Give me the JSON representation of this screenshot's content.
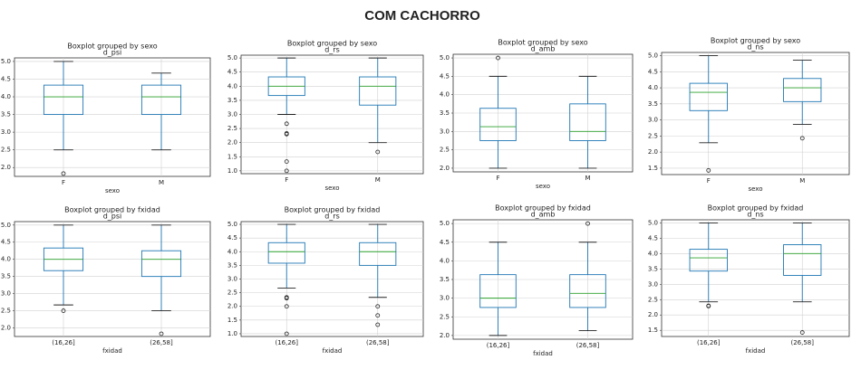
{
  "page_title": "COM CACHORRO",
  "chart_data": [
    {
      "type": "box",
      "title": "Boxplot grouped by sexo",
      "subtitle": "d_psi",
      "xlabel": "sexo",
      "categories": [
        "F",
        "M"
      ],
      "boxes": [
        {
          "whislo": 2.5,
          "q1": 3.5,
          "med": 4.0,
          "q3": 4.33,
          "whishi": 5.0,
          "fliers": [
            1.83
          ]
        },
        {
          "whislo": 2.5,
          "q1": 3.5,
          "med": 4.0,
          "q3": 4.33,
          "whishi": 4.67,
          "fliers": []
        }
      ],
      "ylim": [
        1.75,
        5.1
      ],
      "yticks": [
        {
          "value": 2,
          "label": "2.0"
        },
        2.5,
        {
          "value": 3,
          "label": "3.0"
        },
        3.5,
        {
          "value": 4,
          "label": "4.0"
        },
        4.5,
        {
          "value": 5,
          "label": "5.0"
        }
      ],
      "grid": true,
      "color": "#1f77b4",
      "median_color": "#2ca02c"
    },
    {
      "type": "box",
      "title": "Boxplot grouped by sexo",
      "subtitle": "d_rs",
      "xlabel": "sexo",
      "categories": [
        "F",
        "M"
      ],
      "boxes": [
        {
          "whislo": 3.0,
          "q1": 3.67,
          "med": 4.0,
          "q3": 4.33,
          "whishi": 5.0,
          "fliers": [
            2.67,
            2.33,
            2.3,
            1.33,
            1.0
          ]
        },
        {
          "whislo": 2.0,
          "q1": 3.33,
          "med": 4.0,
          "q3": 4.33,
          "whishi": 5.0,
          "fliers": [
            1.67
          ]
        }
      ],
      "ylim": [
        0.9,
        5.1
      ],
      "yticks": [
        {
          "value": 1,
          "label": "1.0"
        },
        1.5,
        {
          "value": 2,
          "label": "2.0"
        },
        2.5,
        {
          "value": 3,
          "label": "3.0"
        },
        3.5,
        {
          "value": 4,
          "label": "4.0"
        },
        4.5,
        {
          "value": 5,
          "label": "5.0"
        }
      ],
      "grid": true,
      "color": "#1f77b4",
      "median_color": "#2ca02c"
    },
    {
      "type": "box",
      "title": "Boxplot grouped by sexo",
      "subtitle": "d_amb",
      "xlabel": "sexo",
      "categories": [
        "F",
        "M"
      ],
      "boxes": [
        {
          "whislo": 2.0,
          "q1": 2.75,
          "med": 3.13,
          "q3": 3.63,
          "whishi": 4.5,
          "fliers": [
            5.0
          ]
        },
        {
          "whislo": 2.0,
          "q1": 2.75,
          "med": 3.0,
          "q3": 3.75,
          "whishi": 4.5,
          "fliers": []
        }
      ],
      "ylim": [
        1.9,
        5.1
      ],
      "yticks": [
        {
          "value": 2,
          "label": "2.0"
        },
        2.5,
        {
          "value": 3,
          "label": "3.0"
        },
        3.5,
        {
          "value": 4,
          "label": "4.0"
        },
        4.5,
        {
          "value": 5,
          "label": "5.0"
        }
      ],
      "grid": true,
      "color": "#1f77b4",
      "median_color": "#2ca02c"
    },
    {
      "type": "box",
      "title": "Boxplot grouped by sexo",
      "subtitle": "d_ns",
      "xlabel": "sexo",
      "categories": [
        "F",
        "M"
      ],
      "boxes": [
        {
          "whislo": 2.29,
          "q1": 3.29,
          "med": 3.86,
          "q3": 4.14,
          "whishi": 5.0,
          "fliers": [
            1.43
          ]
        },
        {
          "whislo": 2.86,
          "q1": 3.57,
          "med": 4.0,
          "q3": 4.29,
          "whishi": 4.86,
          "fliers": [
            2.43
          ]
        }
      ],
      "ylim": [
        1.3,
        5.1
      ],
      "yticks": [
        1.5,
        {
          "value": 2,
          "label": "2.0"
        },
        2.5,
        {
          "value": 3,
          "label": "3.0"
        },
        3.5,
        {
          "value": 4,
          "label": "4.0"
        },
        4.5,
        {
          "value": 5,
          "label": "5.0"
        }
      ],
      "grid": true,
      "color": "#1f77b4",
      "median_color": "#2ca02c"
    },
    {
      "type": "box",
      "title": "Boxplot grouped by fxidad",
      "subtitle": "d_psi",
      "xlabel": "fxidad",
      "categories": [
        "(16,26]",
        "(26,58]"
      ],
      "boxes": [
        {
          "whislo": 2.67,
          "q1": 3.67,
          "med": 4.0,
          "q3": 4.33,
          "whishi": 5.0,
          "fliers": [
            2.5
          ]
        },
        {
          "whislo": 2.5,
          "q1": 3.5,
          "med": 4.0,
          "q3": 4.25,
          "whishi": 5.0,
          "fliers": [
            1.83
          ]
        }
      ],
      "ylim": [
        1.75,
        5.1
      ],
      "yticks": [
        {
          "value": 2,
          "label": "2.0"
        },
        2.5,
        {
          "value": 3,
          "label": "3.0"
        },
        3.5,
        {
          "value": 4,
          "label": "4.0"
        },
        4.5,
        {
          "value": 5,
          "label": "5.0"
        }
      ],
      "grid": true,
      "color": "#1f77b4",
      "median_color": "#2ca02c"
    },
    {
      "type": "box",
      "title": "Boxplot grouped by fxidad",
      "subtitle": "d_rs",
      "xlabel": "fxidad",
      "categories": [
        "(16,26]",
        "(26,58]"
      ],
      "boxes": [
        {
          "whislo": 2.67,
          "q1": 3.58,
          "med": 4.0,
          "q3": 4.33,
          "whishi": 5.0,
          "fliers": [
            2.33,
            2.3,
            2.0,
            1.0
          ]
        },
        {
          "whislo": 2.33,
          "q1": 3.5,
          "med": 4.0,
          "q3": 4.33,
          "whishi": 5.0,
          "fliers": [
            2.0,
            1.67,
            1.33
          ]
        }
      ],
      "ylim": [
        0.9,
        5.1
      ],
      "yticks": [
        {
          "value": 1,
          "label": "1.0"
        },
        1.5,
        {
          "value": 2,
          "label": "2.0"
        },
        2.5,
        {
          "value": 3,
          "label": "3.0"
        },
        3.5,
        {
          "value": 4,
          "label": "4.0"
        },
        4.5,
        {
          "value": 5,
          "label": "5.0"
        }
      ],
      "grid": true,
      "color": "#1f77b4",
      "median_color": "#2ca02c"
    },
    {
      "type": "box",
      "title": "Boxplot grouped by fxidad",
      "subtitle": "d_amb",
      "xlabel": "fxidad",
      "categories": [
        "(16,26]",
        "(26,58]"
      ],
      "boxes": [
        {
          "whislo": 2.0,
          "q1": 2.75,
          "med": 3.0,
          "q3": 3.63,
          "whishi": 4.5,
          "fliers": []
        },
        {
          "whislo": 2.13,
          "q1": 2.75,
          "med": 3.13,
          "q3": 3.63,
          "whishi": 4.5,
          "fliers": [
            5.0
          ]
        }
      ],
      "ylim": [
        1.9,
        5.1
      ],
      "yticks": [
        {
          "value": 2,
          "label": "2.0"
        },
        2.5,
        {
          "value": 3,
          "label": "3.0"
        },
        3.5,
        {
          "value": 4,
          "label": "4.0"
        },
        4.5,
        {
          "value": 5,
          "label": "5.0"
        }
      ],
      "grid": true,
      "color": "#1f77b4",
      "median_color": "#2ca02c"
    },
    {
      "type": "box",
      "title": "Boxplot grouped by fxidad",
      "subtitle": "d_ns",
      "xlabel": "fxidad",
      "categories": [
        "(16,26]",
        "(26,58]"
      ],
      "boxes": [
        {
          "whislo": 2.43,
          "q1": 3.43,
          "med": 3.86,
          "q3": 4.14,
          "whishi": 5.0,
          "fliers": [
            2.29,
            2.3
          ]
        },
        {
          "whislo": 2.43,
          "q1": 3.29,
          "med": 4.0,
          "q3": 4.29,
          "whishi": 5.0,
          "fliers": [
            1.43
          ]
        }
      ],
      "ylim": [
        1.3,
        5.1
      ],
      "yticks": [
        1.5,
        {
          "value": 2,
          "label": "2.0"
        },
        2.5,
        {
          "value": 3,
          "label": "3.0"
        },
        3.5,
        {
          "value": 4,
          "label": "4.0"
        },
        4.5,
        {
          "value": 5,
          "label": "5.0"
        }
      ],
      "grid": true,
      "color": "#1f77b4",
      "median_color": "#2ca02c"
    }
  ]
}
